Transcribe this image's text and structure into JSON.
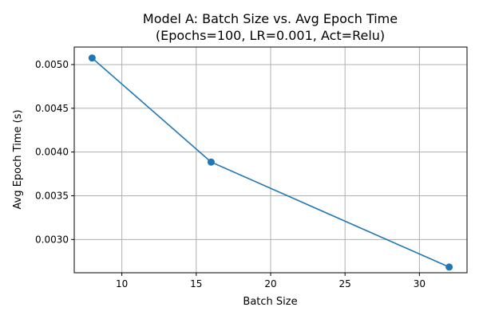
{
  "chart_data": {
    "type": "line",
    "title": "Model A: Batch Size vs. Avg Epoch Time",
    "subtitle": "(Epochs=100, LR=0.001, Act=Relu)",
    "xlabel": "Batch Size",
    "ylabel": "Avg Epoch Time (s)",
    "xlim": [
      6.8,
      33.2
    ],
    "ylim": [
      0.00262,
      0.0052
    ],
    "xticks": [
      10,
      15,
      20,
      25,
      30
    ],
    "xtick_labels": [
      "10",
      "15",
      "20",
      "25",
      "30"
    ],
    "yticks": [
      0.003,
      0.0035,
      0.004,
      0.0045,
      0.005
    ],
    "ytick_labels": [
      "0.0030",
      "0.0035",
      "0.0040",
      "0.0045",
      "0.0050"
    ],
    "grid": true,
    "series": [
      {
        "color": "#1f77b4",
        "marker": "circle",
        "x": [
          8,
          16,
          32
        ],
        "y": [
          0.005075,
          0.003885,
          0.002685
        ]
      }
    ]
  }
}
